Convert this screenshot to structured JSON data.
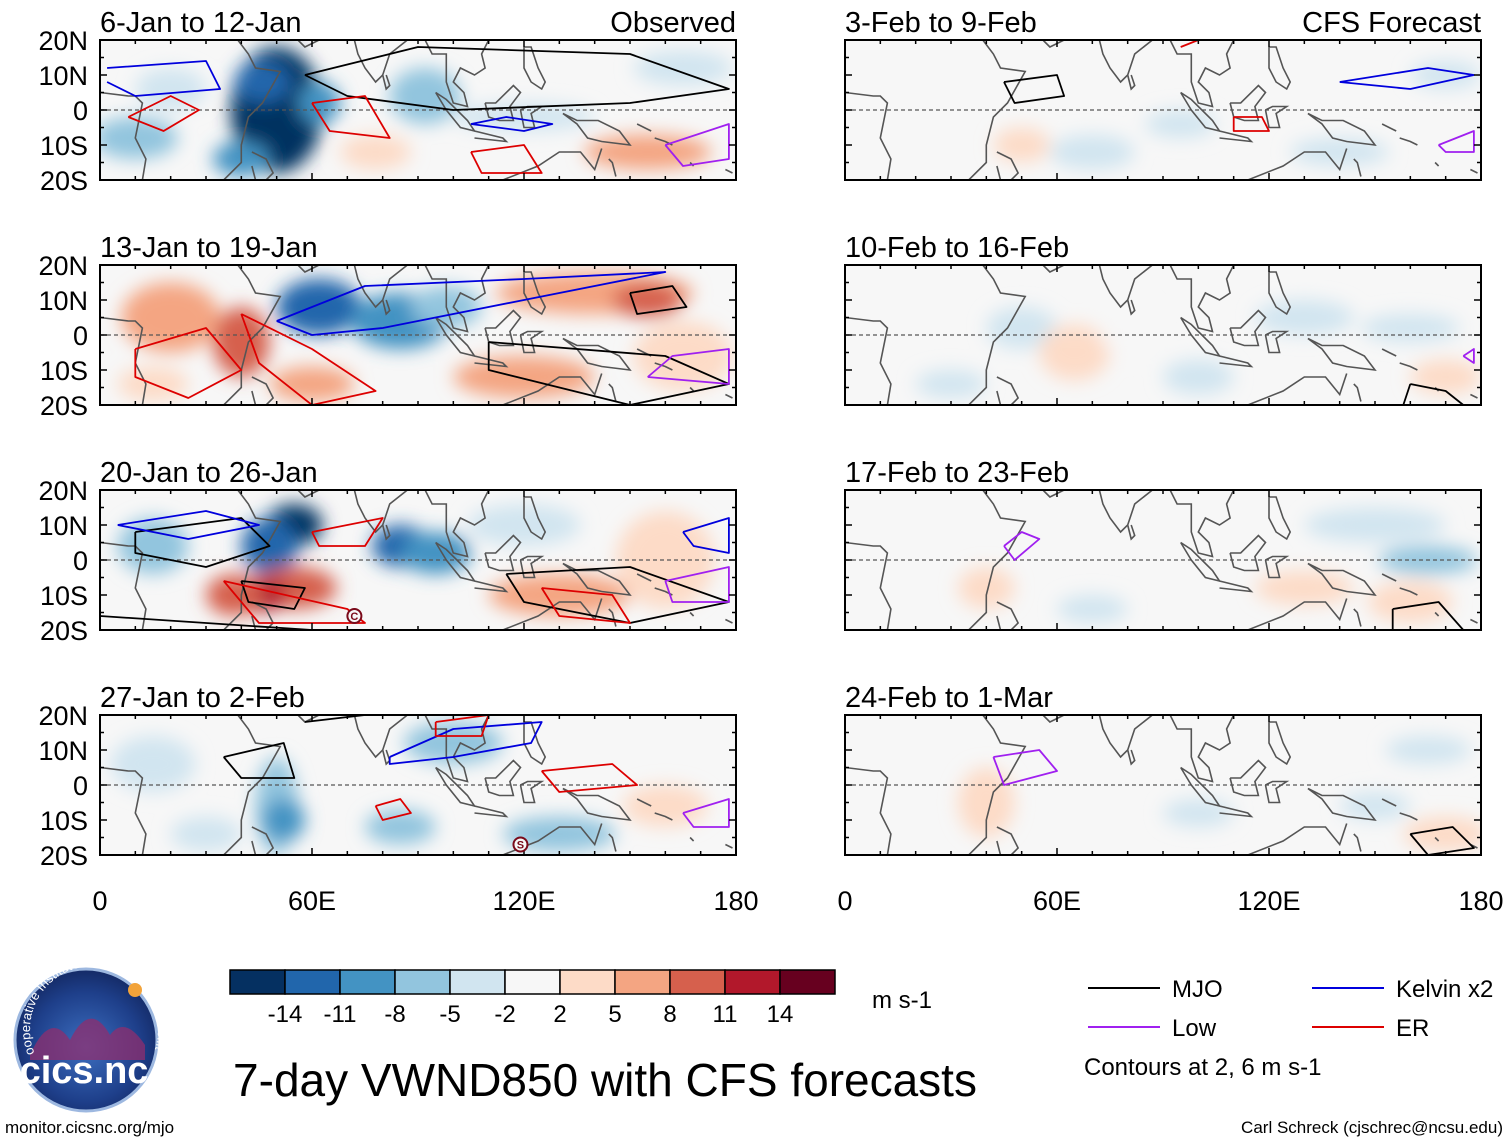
{
  "chart_data": {
    "type": "heatmap",
    "title": "7-day VWND850 with CFS forecasts",
    "variable": "VWND850",
    "units": "m s-1",
    "columns": [
      {
        "label": "Observed",
        "panels": [
          "6-Jan to 12-Jan",
          "13-Jan to 19-Jan",
          "20-Jan to 26-Jan",
          "27-Jan to 2-Feb"
        ]
      },
      {
        "label": "CFS Forecast",
        "panels": [
          "3-Feb to 9-Feb",
          "10-Feb to 16-Feb",
          "17-Feb to 23-Feb",
          "24-Feb to 1-Mar"
        ]
      }
    ],
    "x_ticks": [
      "0",
      "60E",
      "120E",
      "180"
    ],
    "y_ticks": [
      "20N",
      "10N",
      "0",
      "10S",
      "20S"
    ],
    "xlim_deg_east": [
      0,
      180
    ],
    "ylim_deg_lat": [
      -20,
      20
    ],
    "colorbar": {
      "tick_labels": [
        "-14",
        "-11",
        "-8",
        "-5",
        "-2",
        "2",
        "5",
        "8",
        "11",
        "14"
      ],
      "colors": [
        "#053061",
        "#2166ac",
        "#4393c3",
        "#92c5de",
        "#d1e5f0",
        "#f7f7f7",
        "#fddbc7",
        "#f4a582",
        "#d6604d",
        "#b2182b",
        "#67001f"
      ]
    },
    "legend": [
      {
        "label": "MJO",
        "color": "#000000"
      },
      {
        "label": "Kelvin x2",
        "color": "#0000dd"
      },
      {
        "label": "Low",
        "color": "#a020f0"
      },
      {
        "label": "ER",
        "color": "#dd0000"
      }
    ],
    "contour_note": "Contours at 2, 6 m s-1",
    "annotations": [
      "C",
      "S"
    ]
  },
  "footer": {
    "left": "monitor.cicsnc.org/mjo",
    "right": "Carl Schreck (cjschrec@ncsu.edu)"
  },
  "logo": {
    "text": "cics.nc",
    "ring": "Cooperative Institute for Climate and Satellites"
  }
}
